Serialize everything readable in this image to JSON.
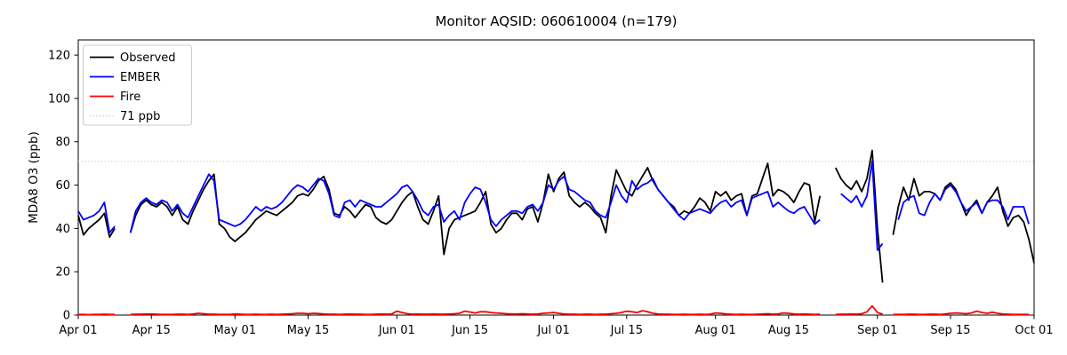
{
  "chart_data": {
    "type": "line",
    "title": "Monitor AQSID: 060610004 (n=179)",
    "xlabel": "",
    "ylabel": "MDA8 O3 (ppb)",
    "ylim": [
      0,
      127
    ],
    "yticks": [
      0,
      20,
      40,
      60,
      80,
      100,
      120
    ],
    "xticks": [
      {
        "day": 0,
        "label": "Apr 01"
      },
      {
        "day": 14,
        "label": "Apr 15"
      },
      {
        "day": 30,
        "label": "May 01"
      },
      {
        "day": 44,
        "label": "May 15"
      },
      {
        "day": 61,
        "label": "Jun 01"
      },
      {
        "day": 75,
        "label": "Jun 15"
      },
      {
        "day": 91,
        "label": "Jul 01"
      },
      {
        "day": 105,
        "label": "Jul 15"
      },
      {
        "day": 122,
        "label": "Aug 01"
      },
      {
        "day": 136,
        "label": "Aug 15"
      },
      {
        "day": 153,
        "label": "Sep 01"
      },
      {
        "day": 167,
        "label": "Sep 15"
      },
      {
        "day": 183,
        "label": "Oct 01"
      }
    ],
    "grid": false,
    "legend_position": "upper-left",
    "legend": [
      {
        "label": "Observed",
        "color": "#000000",
        "dash": ""
      },
      {
        "label": "EMBER",
        "color": "#0000ff",
        "dash": ""
      },
      {
        "label": "Fire",
        "color": "#ff0000",
        "dash": ""
      },
      {
        "label": "71 ppb",
        "color": "#d3d3d3",
        "dash": "1.3 2.4"
      }
    ],
    "threshold": {
      "value": 71,
      "label": "71 ppb",
      "color": "#d3d3d3"
    },
    "colors": {
      "background": "#ffffff",
      "axis": "#000000",
      "tick_text": "#000000"
    },
    "x_start": "Apr 01",
    "x_frequency": "daily",
    "dates": [
      "Apr 01",
      "Apr 02",
      "Apr 03",
      "Apr 04",
      "Apr 05",
      "Apr 06",
      "Apr 07",
      "Apr 08",
      "Apr 09",
      "Apr 10",
      "Apr 11",
      "Apr 12",
      "Apr 13",
      "Apr 14",
      "Apr 15",
      "Apr 16",
      "Apr 17",
      "Apr 18",
      "Apr 19",
      "Apr 20",
      "Apr 21",
      "Apr 22",
      "Apr 23",
      "Apr 24",
      "Apr 25",
      "Apr 26",
      "Apr 27",
      "Apr 28",
      "Apr 29",
      "Apr 30",
      "May 01",
      "May 02",
      "May 03",
      "May 04",
      "May 05",
      "May 06",
      "May 07",
      "May 08",
      "May 09",
      "May 10",
      "May 11",
      "May 12",
      "May 13",
      "May 14",
      "May 15",
      "May 16",
      "May 17",
      "May 18",
      "May 19",
      "May 20",
      "May 21",
      "May 22",
      "May 23",
      "May 24",
      "May 25",
      "May 26",
      "May 27",
      "May 28",
      "May 29",
      "May 30",
      "May 31",
      "Jun 01",
      "Jun 02",
      "Jun 03",
      "Jun 04",
      "Jun 05",
      "Jun 06",
      "Jun 07",
      "Jun 08",
      "Jun 09",
      "Jun 10",
      "Jun 11",
      "Jun 12",
      "Jun 13",
      "Jun 14",
      "Jun 15",
      "Jun 16",
      "Jun 17",
      "Jun 18",
      "Jun 19",
      "Jun 20",
      "Jun 21",
      "Jun 22",
      "Jun 23",
      "Jun 24",
      "Jun 25",
      "Jun 26",
      "Jun 27",
      "Jun 28",
      "Jun 29",
      "Jun 30",
      "Jul 01",
      "Jul 02",
      "Jul 03",
      "Jul 04",
      "Jul 05",
      "Jul 06",
      "Jul 07",
      "Jul 08",
      "Jul 09",
      "Jul 10",
      "Jul 11",
      "Jul 12",
      "Jul 13",
      "Jul 14",
      "Jul 15",
      "Jul 16",
      "Jul 17",
      "Jul 18",
      "Jul 19",
      "Jul 20",
      "Jul 21",
      "Jul 22",
      "Jul 23",
      "Jul 24",
      "Jul 25",
      "Jul 26",
      "Jul 27",
      "Jul 28",
      "Jul 29",
      "Jul 30",
      "Jul 31",
      "Aug 01",
      "Aug 02",
      "Aug 03",
      "Aug 04",
      "Aug 05",
      "Aug 06",
      "Aug 07",
      "Aug 08",
      "Aug 09",
      "Aug 10",
      "Aug 11",
      "Aug 12",
      "Aug 13",
      "Aug 14",
      "Aug 15",
      "Aug 16",
      "Aug 17",
      "Aug 18",
      "Aug 19",
      "Aug 20",
      "Aug 21",
      "Aug 22",
      "Aug 23",
      "Aug 24",
      "Aug 25",
      "Aug 26",
      "Aug 27",
      "Aug 28",
      "Aug 29",
      "Aug 30",
      "Aug 31",
      "Sep 01",
      "Sep 02",
      "Sep 03",
      "Sep 04",
      "Sep 05",
      "Sep 06",
      "Sep 07",
      "Sep 08",
      "Sep 09",
      "Sep 10",
      "Sep 11",
      "Sep 12",
      "Sep 13",
      "Sep 14",
      "Sep 15",
      "Sep 16",
      "Sep 17",
      "Sep 18",
      "Sep 19",
      "Sep 20",
      "Sep 21",
      "Sep 22",
      "Sep 23",
      "Sep 24",
      "Sep 25",
      "Sep 26",
      "Sep 27",
      "Sep 28",
      "Sep 29",
      "Sep 30",
      "Oct 01"
    ],
    "series": [
      {
        "name": "Observed",
        "color": "#000000",
        "values": [
          46,
          37,
          40,
          42,
          44,
          47,
          36,
          40,
          null,
          null,
          38,
          46,
          51,
          53,
          51,
          50,
          52,
          50,
          46,
          50,
          44,
          42,
          48,
          53,
          58,
          62,
          65,
          42,
          40,
          36,
          34,
          36,
          38,
          41,
          44,
          46,
          48,
          47,
          46,
          48,
          50,
          52,
          55,
          56,
          55,
          58,
          62,
          64,
          58,
          47,
          46,
          50,
          48,
          45,
          48,
          51,
          50,
          45,
          43,
          42,
          44,
          48,
          52,
          55,
          57,
          50,
          44,
          42,
          48,
          55,
          28,
          40,
          44,
          45,
          46,
          47,
          48,
          52,
          57,
          42,
          38,
          40,
          44,
          47,
          47,
          44,
          49,
          50,
          43,
          52,
          65,
          57,
          63,
          66,
          55,
          52,
          50,
          52,
          50,
          47,
          45,
          38,
          55,
          67,
          62,
          57,
          55,
          60,
          64,
          68,
          62,
          58,
          55,
          52,
          50,
          46,
          48,
          47,
          50,
          54,
          52,
          48,
          57,
          55,
          57,
          53,
          55,
          56,
          46,
          55,
          56,
          63,
          70,
          55,
          58,
          57,
          55,
          52,
          57,
          61,
          60,
          43,
          55,
          null,
          null,
          68,
          63,
          60,
          58,
          62,
          57,
          63,
          76,
          40,
          15,
          null,
          37,
          50,
          59,
          53,
          63,
          55,
          57,
          57,
          56,
          53,
          59,
          61,
          58,
          52,
          46,
          50,
          53,
          47,
          52,
          55,
          59,
          48,
          41,
          45,
          46,
          43,
          35,
          24
        ]
      },
      {
        "name": "EMBER",
        "color": "#0000ff",
        "values": [
          48,
          44,
          45,
          46,
          48,
          52,
          38,
          41,
          null,
          null,
          38,
          48,
          52,
          54,
          52,
          51,
          53,
          52,
          48,
          51,
          47,
          45,
          50,
          55,
          60,
          65,
          62,
          44,
          43,
          42,
          41,
          42,
          44,
          47,
          50,
          48,
          50,
          49,
          50,
          52,
          55,
          58,
          60,
          59,
          57,
          60,
          63,
          62,
          56,
          46,
          45,
          52,
          53,
          50,
          53,
          52,
          51,
          50,
          50,
          52,
          54,
          56,
          59,
          60,
          57,
          53,
          48,
          46,
          50,
          51,
          43,
          46,
          48,
          44,
          52,
          56,
          59,
          58,
          52,
          44,
          41,
          44,
          46,
          48,
          48,
          47,
          50,
          51,
          48,
          52,
          60,
          58,
          62,
          64,
          58,
          57,
          55,
          53,
          52,
          48,
          46,
          45,
          52,
          60,
          55,
          52,
          62,
          58,
          60,
          61,
          63,
          58,
          55,
          52,
          49,
          46,
          44,
          47,
          48,
          49,
          48,
          47,
          50,
          52,
          53,
          50,
          52,
          53,
          46,
          54,
          55,
          56,
          57,
          50,
          52,
          50,
          48,
          47,
          49,
          50,
          46,
          42,
          44,
          null,
          null,
          null,
          56,
          54,
          52,
          55,
          50,
          55,
          71,
          30,
          33,
          null,
          null,
          44,
          52,
          54,
          55,
          47,
          46,
          52,
          56,
          53,
          58,
          60,
          57,
          52,
          48,
          50,
          52,
          47,
          52,
          53,
          53,
          50,
          44,
          50,
          50,
          50,
          42,
          null
        ]
      },
      {
        "name": "Fire",
        "color": "#ff0000",
        "values": [
          0.3,
          0.3,
          0.2,
          0.3,
          0.3,
          0.4,
          0.3,
          0.3,
          null,
          null,
          0.3,
          0.4,
          0.4,
          0.5,
          0.5,
          0.4,
          0.3,
          0.3,
          0.3,
          0.4,
          0.4,
          0.3,
          0.5,
          0.8,
          0.6,
          0.4,
          0.4,
          0.3,
          0.3,
          0.3,
          0.5,
          0.4,
          0.3,
          0.3,
          0.4,
          0.3,
          0.3,
          0.4,
          0.3,
          0.4,
          0.5,
          0.6,
          0.8,
          0.8,
          0.6,
          0.8,
          0.7,
          0.5,
          0.4,
          0.4,
          0.3,
          0.4,
          0.5,
          0.4,
          0.4,
          0.3,
          0.3,
          0.4,
          0.5,
          0.4,
          0.5,
          1.8,
          1.2,
          0.6,
          0.4,
          0.5,
          0.4,
          0.4,
          0.5,
          0.4,
          0.4,
          0.5,
          0.6,
          0.8,
          1.8,
          1.4,
          1.0,
          1.5,
          1.5,
          1.2,
          1.0,
          0.8,
          0.6,
          0.5,
          0.5,
          0.6,
          0.5,
          0.4,
          0.5,
          0.8,
          1.0,
          1.2,
          0.8,
          0.5,
          0.4,
          0.4,
          0.3,
          0.4,
          0.4,
          0.3,
          0.4,
          0.4,
          0.6,
          0.8,
          1.2,
          1.8,
          1.5,
          1.2,
          2.0,
          1.5,
          0.8,
          0.5,
          0.4,
          0.4,
          0.3,
          0.3,
          0.4,
          0.3,
          0.3,
          0.4,
          0.3,
          0.4,
          1.0,
          0.8,
          0.5,
          0.4,
          0.3,
          0.4,
          0.3,
          0.3,
          0.4,
          0.5,
          0.6,
          0.4,
          0.5,
          1.0,
          0.8,
          0.5,
          0.4,
          0.5,
          0.4,
          0.3,
          0.4,
          null,
          null,
          0.3,
          0.4,
          0.4,
          0.5,
          0.4,
          0.6,
          1.5,
          4.2,
          1.2,
          0.4,
          null,
          0.3,
          0.3,
          0.3,
          0.4,
          0.4,
          0.3,
          0.3,
          0.4,
          0.4,
          0.3,
          0.5,
          0.8,
          1.0,
          0.8,
          0.6,
          1.0,
          1.8,
          1.2,
          0.8,
          1.3,
          0.8,
          0.5,
          0.4,
          0.3,
          0.3,
          0.3,
          0.3,
          null
        ]
      }
    ]
  }
}
